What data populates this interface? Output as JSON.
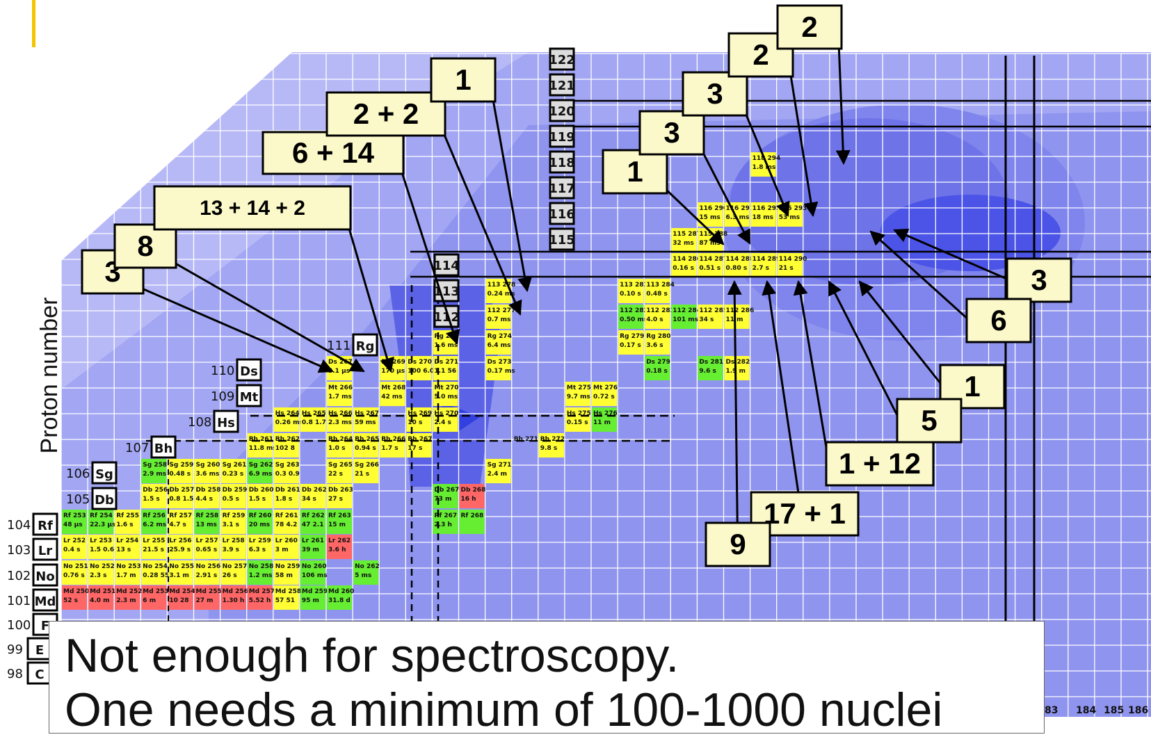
{
  "slide": {
    "accent_color": "#f5c400",
    "y_axis_label": "Proton number",
    "caption_line1": "Not enough for spectroscopy.",
    "caption_line2": "One needs a minimum of 100-1000 nuclei"
  },
  "colors": {
    "alpha_yellow": "#ffff33",
    "fission_green": "#66ee33",
    "ec_red": "#ff6666",
    "chart_blue": "#8f94ef",
    "box_fill": "#fbf8c9",
    "grid_line": "#ffffff"
  },
  "element_labels": [
    {
      "z": "122",
      "sym": ""
    },
    {
      "z": "121",
      "sym": ""
    },
    {
      "z": "120",
      "sym": ""
    },
    {
      "z": "119",
      "sym": ""
    },
    {
      "z": "118",
      "sym": ""
    },
    {
      "z": "117",
      "sym": ""
    },
    {
      "z": "116",
      "sym": ""
    },
    {
      "z": "115",
      "sym": ""
    },
    {
      "z": "114",
      "sym": ""
    },
    {
      "z": "113",
      "sym": ""
    },
    {
      "z": "112",
      "sym": ""
    },
    {
      "z": "111",
      "sym": "Rg"
    },
    {
      "z": "110",
      "sym": "Ds"
    },
    {
      "z": "109",
      "sym": "Mt"
    },
    {
      "z": "108",
      "sym": "Hs"
    },
    {
      "z": "107",
      "sym": "Bh"
    },
    {
      "z": "106",
      "sym": "Sg"
    },
    {
      "z": "105",
      "sym": "Db"
    },
    {
      "z": "104",
      "sym": "Rf"
    },
    {
      "z": "103",
      "sym": "Lr"
    },
    {
      "z": "102",
      "sym": "No"
    },
    {
      "z": "101",
      "sym": "Md"
    },
    {
      "z": "100",
      "sym": "F"
    },
    {
      "z": "99",
      "sym": "E"
    },
    {
      "z": "98",
      "sym": "C"
    }
  ],
  "neutron_axis": [
    "83",
    "184",
    "185",
    "186"
  ],
  "cells": [
    {
      "l1": "Rf 253",
      "l2": "48 µs",
      "c": "g"
    },
    {
      "l1": "Rf 254",
      "l2": "22.3 µs",
      "c": "g"
    },
    {
      "l1": "Rf 255",
      "l2": "1.6 s",
      "c": "y"
    },
    {
      "l1": "Rf 256",
      "l2": "6.2 ms",
      "c": "g"
    },
    {
      "l1": "Rf 257",
      "l2": "4.7 s",
      "c": "y"
    },
    {
      "l1": "Rf 258",
      "l2": "13 ms",
      "c": "g"
    },
    {
      "l1": "Rf 259",
      "l2": "3.1 s",
      "c": "y"
    },
    {
      "l1": "Rf 260",
      "l2": "20 ms",
      "c": "g"
    },
    {
      "l1": "Rf 261",
      "l2": "78 4.2",
      "c": "y"
    },
    {
      "l1": "Rf 262",
      "l2": "47 2.1",
      "c": "g"
    },
    {
      "l1": "Rf 263",
      "l2": "15 m",
      "c": "g"
    },
    {
      "l1": "Rf 267",
      "l2": "2.3 h",
      "c": "g"
    },
    {
      "l1": "Rf 268",
      "l2": "",
      "c": "g"
    },
    {
      "l1": "Lr 252",
      "l2": "0.4 s",
      "c": "y"
    },
    {
      "l1": "Lr 253",
      "l2": "1.5 0.6",
      "c": "y"
    },
    {
      "l1": "Lr 254",
      "l2": "13 s",
      "c": "y"
    },
    {
      "l1": "Lr 255",
      "l2": "21.5 s",
      "c": "y"
    },
    {
      "l1": "Lr 256",
      "l2": "25.9 s",
      "c": "y"
    },
    {
      "l1": "Lr 257",
      "l2": "0.65 s",
      "c": "y"
    },
    {
      "l1": "Lr 258",
      "l2": "3.9 s",
      "c": "y"
    },
    {
      "l1": "Lr 259",
      "l2": "6.3 s",
      "c": "y"
    },
    {
      "l1": "Lr 260",
      "l2": "3 m",
      "c": "y"
    },
    {
      "l1": "Lr 261",
      "l2": "39 m",
      "c": "g"
    },
    {
      "l1": "Lr 262",
      "l2": "3.6 h",
      "c": "r"
    },
    {
      "l1": "No 251",
      "l2": "0.76 s",
      "c": "y"
    },
    {
      "l1": "No 252",
      "l2": "2.3 s",
      "c": "y"
    },
    {
      "l1": "No 253",
      "l2": "1.7 m",
      "c": "y"
    },
    {
      "l1": "No 254",
      "l2": "0.28 55",
      "c": "y"
    },
    {
      "l1": "No 255",
      "l2": "3.1 m",
      "c": "y"
    },
    {
      "l1": "No 256",
      "l2": "2.91 s",
      "c": "y"
    },
    {
      "l1": "No 257",
      "l2": "26 s",
      "c": "y"
    },
    {
      "l1": "No 258",
      "l2": "1.2 ms",
      "c": "g"
    },
    {
      "l1": "No 259",
      "l2": "58 m",
      "c": "y"
    },
    {
      "l1": "No 260",
      "l2": "106 ms",
      "c": "g"
    },
    {
      "l1": "No 262",
      "l2": "5 ms",
      "c": "g"
    },
    {
      "l1": "Md 250",
      "l2": "52 s",
      "c": "r"
    },
    {
      "l1": "Md 251",
      "l2": "4.0 m",
      "c": "r"
    },
    {
      "l1": "Md 252",
      "l2": "2.3 m",
      "c": "r"
    },
    {
      "l1": "Md 253",
      "l2": "6 m",
      "c": "r"
    },
    {
      "l1": "Md 254",
      "l2": "10 28",
      "c": "r"
    },
    {
      "l1": "Md 255",
      "l2": "27 m",
      "c": "r"
    },
    {
      "l1": "Md 256",
      "l2": "1.30 h",
      "c": "r"
    },
    {
      "l1": "Md 257",
      "l2": "5.52 h",
      "c": "r"
    },
    {
      "l1": "Md 258",
      "l2": "57 51",
      "c": "y"
    },
    {
      "l1": "Md 259",
      "l2": "95 m",
      "c": "g"
    },
    {
      "l1": "Md 260",
      "l2": "31.8 d",
      "c": "g"
    },
    {
      "l1": "Db 256",
      "l2": "1.5 s",
      "c": "y"
    },
    {
      "l1": "Db 257",
      "l2": "0.8 1.5",
      "c": "y"
    },
    {
      "l1": "Db 258",
      "l2": "4.4 s",
      "c": "y"
    },
    {
      "l1": "Db 259",
      "l2": "0.5 s",
      "c": "y"
    },
    {
      "l1": "Db 260",
      "l2": "1.5 s",
      "c": "y"
    },
    {
      "l1": "Db 261",
      "l2": "1.8 s",
      "c": "y"
    },
    {
      "l1": "Db 262",
      "l2": "34 s",
      "c": "y"
    },
    {
      "l1": "Db 263",
      "l2": "27 s",
      "c": "y"
    },
    {
      "l1": "Db 267",
      "l2": "73 m",
      "c": "g"
    },
    {
      "l1": "Db 268",
      "l2": "16 h",
      "c": "r"
    },
    {
      "l1": "Sg 258",
      "l2": "2.9 ms",
      "c": "g"
    },
    {
      "l1": "Sg 259",
      "l2": "0.48 s",
      "c": "y"
    },
    {
      "l1": "Sg 260",
      "l2": "3.6 ms",
      "c": "y"
    },
    {
      "l1": "Sg 261",
      "l2": "0.23 s",
      "c": "y"
    },
    {
      "l1": "Sg 262",
      "l2": "6.9 ms",
      "c": "g"
    },
    {
      "l1": "Sg 263",
      "l2": "0.3 0.9",
      "c": "y"
    },
    {
      "l1": "Sg 265",
      "l2": "22 s",
      "c": "y"
    },
    {
      "l1": "Sg 266",
      "l2": "21 s",
      "c": "y"
    },
    {
      "l1": "Sg 271",
      "l2": "2.4 m",
      "c": "y"
    },
    {
      "l1": "Bh 261",
      "l2": "11.8 ms",
      "c": "y"
    },
    {
      "l1": "Bh 262",
      "l2": "102 8",
      "c": "y"
    },
    {
      "l1": "Bh 264",
      "l2": "1.0 s",
      "c": "y"
    },
    {
      "l1": "Bh 265",
      "l2": "0.94 s",
      "c": "y"
    },
    {
      "l1": "Bh 266",
      "l2": "1.7 s",
      "c": "y"
    },
    {
      "l1": "Bh 267",
      "l2": "17 s",
      "c": "y"
    },
    {
      "l1": "Bh 271",
      "l2": "",
      "c": "none"
    },
    {
      "l1": "Bh 272",
      "l2": "9.8 s",
      "c": "y"
    },
    {
      "l1": "Hs 264",
      "l2": "0.26 ms",
      "c": "y"
    },
    {
      "l1": "Hs 265",
      "l2": "0.8 1.7",
      "c": "y"
    },
    {
      "l1": "Hs 266",
      "l2": "2.3 ms",
      "c": "y"
    },
    {
      "l1": "Hs 267",
      "l2": "59 ms",
      "c": "y"
    },
    {
      "l1": "Hs 269",
      "l2": "10 s",
      "c": "y"
    },
    {
      "l1": "Hs 270",
      "l2": "2.4 s",
      "c": "y"
    },
    {
      "l1": "Hs 275",
      "l2": "0.15 s",
      "c": "y"
    },
    {
      "l1": "Hs 276",
      "l2": "11 m",
      "c": "g"
    },
    {
      "l1": "Mt 266",
      "l2": "1.7 ms",
      "c": "y"
    },
    {
      "l1": "Mt 268",
      "l2": "42 ms",
      "c": "y"
    },
    {
      "l1": "Mt 270",
      "l2": "5.0 ms",
      "c": "y"
    },
    {
      "l1": "Mt 275",
      "l2": "9.7 ms",
      "c": "y"
    },
    {
      "l1": "Mt 276",
      "l2": "0.72 s",
      "c": "y"
    },
    {
      "l1": "Ds 267",
      "l2": "3.1 µs",
      "c": "y"
    },
    {
      "l1": "Ds 269",
      "l2": "170 µs",
      "c": "y"
    },
    {
      "l1": "Ds 270",
      "l2": "100 6.0",
      "c": "y"
    },
    {
      "l1": "Ds 271",
      "l2": "1.1 56",
      "c": "y"
    },
    {
      "l1": "Ds 273",
      "l2": "0.17 ms",
      "c": "y"
    },
    {
      "l1": "Ds 279",
      "l2": "0.18 s",
      "c": "g"
    },
    {
      "l1": "Ds 281",
      "l2": "9.6 s",
      "c": "g"
    },
    {
      "l1": "Ds 282",
      "l2": "1.9 m",
      "c": "y"
    },
    {
      "l1": "Rg 272",
      "l2": "1.6 ms",
      "c": "y"
    },
    {
      "l1": "Rg 274",
      "l2": "6.4 ms",
      "c": "y"
    },
    {
      "l1": "Rg 279",
      "l2": "0.17 s",
      "c": "y"
    },
    {
      "l1": "Rg 280",
      "l2": "3.6 s",
      "c": "y"
    },
    {
      "l1": "112 277",
      "l2": "0.7 ms",
      "c": "y"
    },
    {
      "l1": "112 282",
      "l2": "0.50 ms",
      "c": "g"
    },
    {
      "l1": "112 283",
      "l2": "4.0 s",
      "c": "y"
    },
    {
      "l1": "112 284",
      "l2": "101 ms",
      "c": "g"
    },
    {
      "l1": "112 285",
      "l2": "34 s",
      "c": "y"
    },
    {
      "l1": "112 286",
      "l2": "11 m",
      "c": "y"
    },
    {
      "l1": "113 278",
      "l2": "0.24 ms",
      "c": "y"
    },
    {
      "l1": "113 283",
      "l2": "0.10 s",
      "c": "y"
    },
    {
      "l1": "113 284",
      "l2": "0.48 s",
      "c": "y"
    },
    {
      "l1": "114 286",
      "l2": "0.16 s",
      "c": "y"
    },
    {
      "l1": "114 287",
      "l2": "0.51 s",
      "c": "y"
    },
    {
      "l1": "114 288",
      "l2": "0.80 s",
      "c": "y"
    },
    {
      "l1": "114 289",
      "l2": "2.7 s",
      "c": "y"
    },
    {
      "l1": "114 290",
      "l2": "21 s",
      "c": "y"
    },
    {
      "l1": "115 287",
      "l2": "32 ms",
      "c": "y"
    },
    {
      "l1": "115 288",
      "l2": "87 ms",
      "c": "y"
    },
    {
      "l1": "116 290",
      "l2": "15 ms",
      "c": "y"
    },
    {
      "l1": "116 291",
      "l2": "6.3 ms",
      "c": "y"
    },
    {
      "l1": "116 292",
      "l2": "18 ms",
      "c": "y"
    },
    {
      "l1": "116 293",
      "l2": "53 ms",
      "c": "y"
    },
    {
      "l1": "118 294",
      "l2": "1.8 ms",
      "c": "y"
    }
  ],
  "callouts": [
    "3",
    "8",
    "13 + 14 + 2",
    "6 + 14",
    "2 + 2",
    "1",
    "1",
    "3",
    "3",
    "2",
    "2",
    "3",
    "6",
    "1",
    "5",
    "1 + 12",
    "17 + 1",
    "9"
  ]
}
